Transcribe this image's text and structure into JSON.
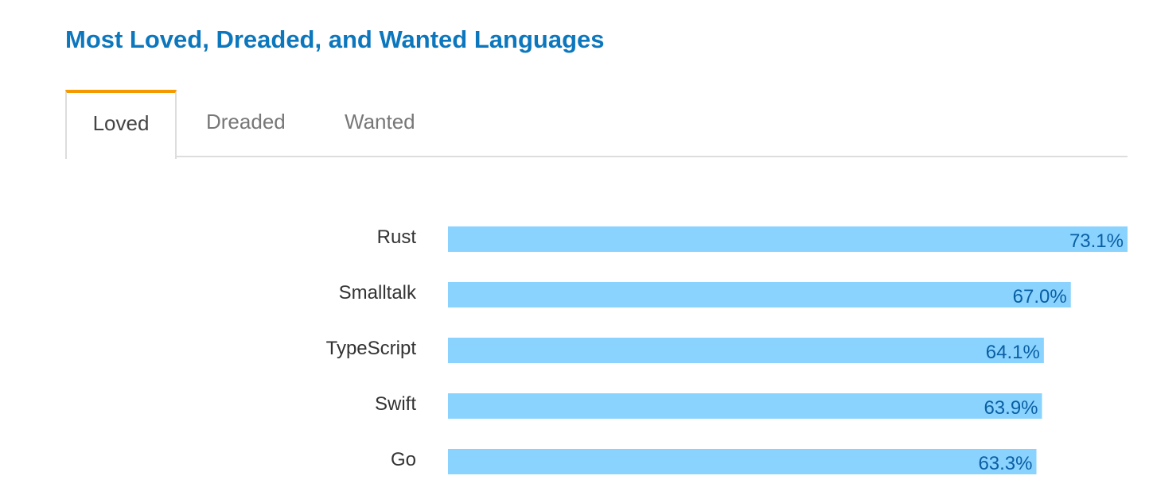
{
  "title": "Most Loved, Dreaded, and Wanted Languages",
  "tabs": [
    {
      "label": "Loved",
      "active": true
    },
    {
      "label": "Dreaded",
      "active": false
    },
    {
      "label": "Wanted",
      "active": false
    }
  ],
  "colors": {
    "title": "#0c77bd",
    "active_tab_accent": "#f49a00",
    "bar": "#8ad3ff",
    "value_text": "#0a5fa3"
  },
  "chart_data": {
    "type": "bar",
    "orientation": "horizontal",
    "categories": [
      "Rust",
      "Smalltalk",
      "TypeScript",
      "Swift",
      "Go"
    ],
    "values": [
      73.1,
      67.0,
      64.1,
      63.9,
      63.3
    ],
    "value_labels": [
      "73.1%",
      "67.0%",
      "64.1%",
      "63.9%",
      "63.3%"
    ],
    "unit": "%",
    "grid": false
  }
}
